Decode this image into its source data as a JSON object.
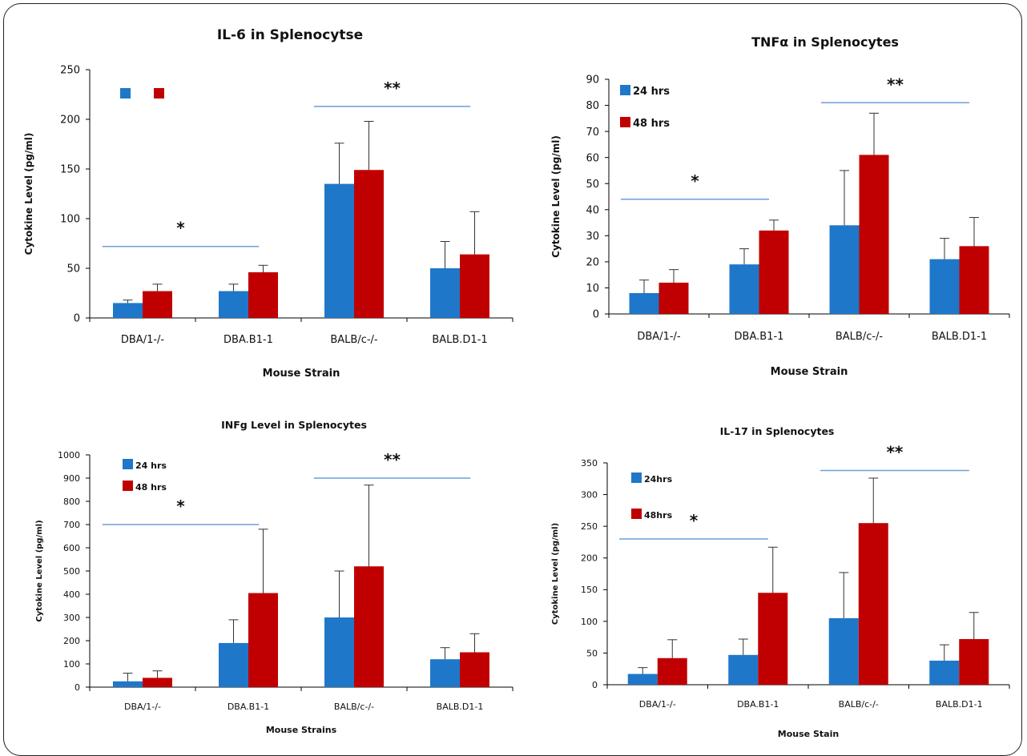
{
  "colors": {
    "series_24": "#1f77c9",
    "series_48": "#c00000",
    "sigline": "#6a9fd8",
    "axis": "#000000"
  },
  "chart_data": [
    {
      "type": "bar",
      "title": "IL-6 in Splenocytse",
      "xlabel": "Mouse Strain",
      "ylabel": "Cytokine Level (pg/ml)",
      "categories": [
        "DBA/1-/-",
        "DBA.B1-1",
        "BALB/c-/-",
        "BALB.D1-1"
      ],
      "ylim": [
        0,
        250
      ],
      "yticks": [
        0,
        50,
        100,
        150,
        200,
        250
      ],
      "legend": {
        "placement": "top-left",
        "labels": [
          "",
          ""
        ]
      },
      "series": [
        {
          "values": [
            15,
            27,
            135,
            50
          ],
          "errors": [
            3,
            7,
            41,
            27
          ]
        },
        {
          "values": [
            27,
            46,
            149,
            64
          ],
          "errors": [
            7,
            7,
            49,
            43
          ]
        }
      ],
      "annotations": [
        {
          "text": "*",
          "x_from": 0,
          "x_to": 1,
          "y": 72
        },
        {
          "text": "**",
          "x_from": 2,
          "x_to": 3,
          "y": 213
        }
      ]
    },
    {
      "type": "bar",
      "title": "TNFα in Splenocytes",
      "xlabel": "Mouse Strain",
      "ylabel": "Cytokine Level (pg/ml)",
      "categories": [
        "DBA/1-/-",
        "DBA.B1-1",
        "BALB/c-/-",
        "BALB.D1-1"
      ],
      "ylim": [
        0,
        90
      ],
      "yticks": [
        0,
        10,
        20,
        30,
        40,
        50,
        60,
        70,
        80,
        90
      ],
      "legend": {
        "placement": "top-left",
        "labels": [
          "24 hrs",
          "48 hrs"
        ]
      },
      "series": [
        {
          "name": "24 hrs",
          "values": [
            8,
            19,
            34,
            21
          ],
          "errors": [
            5,
            6,
            21,
            8
          ]
        },
        {
          "name": "48 hrs",
          "values": [
            12,
            32,
            61,
            26
          ],
          "errors": [
            5,
            4,
            16,
            11
          ]
        }
      ],
      "annotations": [
        {
          "text": "*",
          "x_from": 0,
          "x_to": 1,
          "y": 44
        },
        {
          "text": "**",
          "x_from": 2,
          "x_to": 3,
          "y": 81
        }
      ]
    },
    {
      "type": "bar",
      "title": "INFg Level in Splenocytes",
      "xlabel": "Mouse Strains",
      "ylabel": "Cytokine Level (pg/ml)",
      "categories": [
        "DBA/1-/-",
        "DBA.B1-1",
        "BALB/c-/-",
        "BALB.D1-1"
      ],
      "ylim": [
        0,
        1000
      ],
      "yticks": [
        0,
        100,
        200,
        300,
        400,
        500,
        600,
        700,
        800,
        900,
        1000
      ],
      "legend": {
        "placement": "top-left",
        "labels": [
          "24 hrs",
          "48 hrs"
        ]
      },
      "series": [
        {
          "name": "24 hrs",
          "values": [
            25,
            190,
            300,
            120
          ],
          "errors": [
            35,
            100,
            200,
            50
          ]
        },
        {
          "name": "48 hrs",
          "values": [
            40,
            405,
            520,
            150
          ],
          "errors": [
            30,
            275,
            350,
            80
          ]
        }
      ],
      "annotations": [
        {
          "text": "*",
          "x_from": 0,
          "x_to": 1,
          "y": 700
        },
        {
          "text": "**",
          "x_from": 2,
          "x_to": 3,
          "y": 900
        }
      ]
    },
    {
      "type": "bar",
      "title": "IL-17 in Splenocytes",
      "xlabel": "Mouse Stain",
      "ylabel": "Cytokine Level (pg/ml)",
      "categories": [
        "DBA/1-/-",
        "DBA.B1-1",
        "BALB/c-/-",
        "BALB.D1-1"
      ],
      "ylim": [
        0,
        350
      ],
      "yticks": [
        0,
        50,
        100,
        150,
        200,
        250,
        300,
        350
      ],
      "legend": {
        "placement": "top-left",
        "labels": [
          "24hrs",
          "48hrs"
        ]
      },
      "series": [
        {
          "name": "24hrs",
          "values": [
            17,
            47,
            105,
            38
          ],
          "errors": [
            10,
            25,
            72,
            25
          ]
        },
        {
          "name": "48hrs",
          "values": [
            42,
            145,
            255,
            72
          ],
          "errors": [
            29,
            72,
            71,
            42
          ]
        }
      ],
      "annotations": [
        {
          "text": "*",
          "x_from": 0,
          "x_to": 1,
          "y": 230
        },
        {
          "text": "**",
          "x_from": 2,
          "x_to": 3,
          "y": 338
        }
      ]
    }
  ]
}
